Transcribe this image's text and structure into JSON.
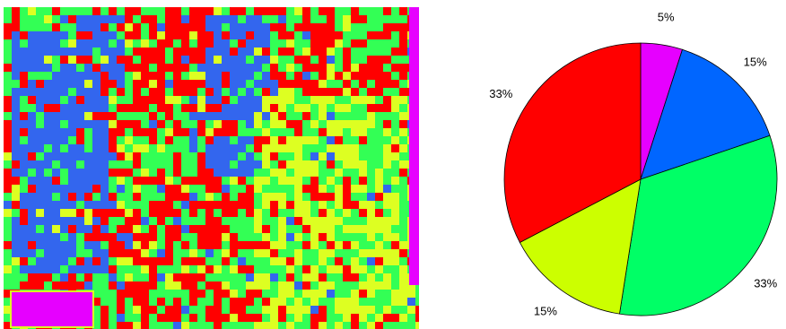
{
  "chart_data": {
    "type": "pie",
    "values": [
      5,
      15,
      33,
      15,
      33
    ],
    "value_labels": [
      "5%",
      "15%",
      "33%",
      "15%",
      "33%"
    ],
    "colors": [
      "#e600ff",
      "#0066ff",
      "#00ff66",
      "#ccff00",
      "#ff0000"
    ]
  }
}
